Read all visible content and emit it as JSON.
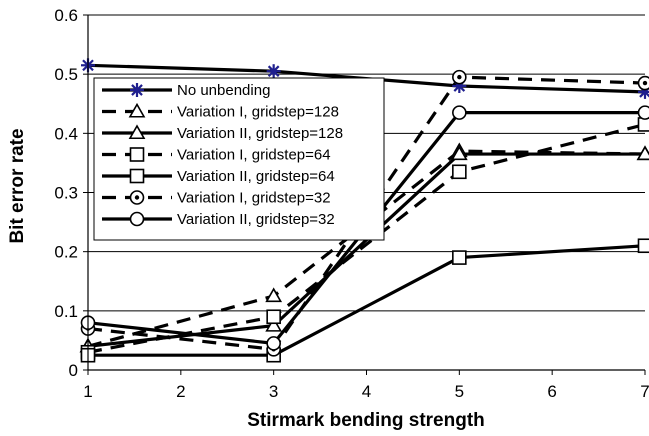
{
  "chart_data": {
    "type": "line",
    "title": "",
    "xlabel": "Stirmark bending strength",
    "ylabel": "Bit error rate",
    "xlim": [
      1,
      7
    ],
    "ylim": [
      0,
      0.6
    ],
    "x_ticks": [
      1,
      2,
      3,
      4,
      5,
      6,
      7
    ],
    "y_ticks": [
      0,
      0.1,
      0.2,
      0.3,
      0.4,
      0.5,
      0.6
    ],
    "y_tick_labels": [
      "0",
      "0.1",
      "0.2",
      "0.3",
      "0.4",
      "0.5",
      "0.6"
    ],
    "grid": "horizontal",
    "legend_position": "upper-left inside plot",
    "series": [
      {
        "name": "No unbending",
        "marker": "star",
        "dash": "solid",
        "color": "#000000",
        "marker_color": "#1f1f8f",
        "x": [
          1,
          3,
          5,
          7
        ],
        "y": [
          0.515,
          0.505,
          0.48,
          0.47
        ]
      },
      {
        "name": "Variation I, gridstep=128",
        "marker": "triangle",
        "dash": "dashed",
        "color": "#000000",
        "x": [
          1,
          3,
          5,
          7
        ],
        "y": [
          0.04,
          0.125,
          0.37,
          0.365
        ]
      },
      {
        "name": "Variation II, gridstep=128",
        "marker": "triangle",
        "dash": "solid",
        "color": "#000000",
        "x": [
          1,
          3,
          5,
          7
        ],
        "y": [
          0.04,
          0.075,
          0.365,
          0.365
        ]
      },
      {
        "name": "Variation I, gridstep=64",
        "marker": "square",
        "dash": "dashed",
        "color": "#000000",
        "x": [
          1,
          3,
          5,
          7
        ],
        "y": [
          0.03,
          0.09,
          0.335,
          0.415
        ]
      },
      {
        "name": "Variation II, gridstep=64",
        "marker": "square",
        "dash": "solid",
        "color": "#000000",
        "x": [
          1,
          3,
          5,
          7
        ],
        "y": [
          0.025,
          0.025,
          0.19,
          0.21
        ]
      },
      {
        "name": "Variation I, gridstep=32",
        "marker": "circle-dot",
        "dash": "dashed",
        "color": "#000000",
        "x": [
          1,
          3,
          5,
          7
        ],
        "y": [
          0.07,
          0.035,
          0.495,
          0.485
        ]
      },
      {
        "name": "Variation II, gridstep=32",
        "marker": "circle",
        "dash": "solid",
        "color": "#000000",
        "x": [
          1,
          3,
          5,
          7
        ],
        "y": [
          0.08,
          0.045,
          0.435,
          0.435
        ]
      }
    ],
    "colors": {
      "axis": "#000000",
      "grid": "#000000",
      "star_marker": "#1f1f8f"
    }
  }
}
